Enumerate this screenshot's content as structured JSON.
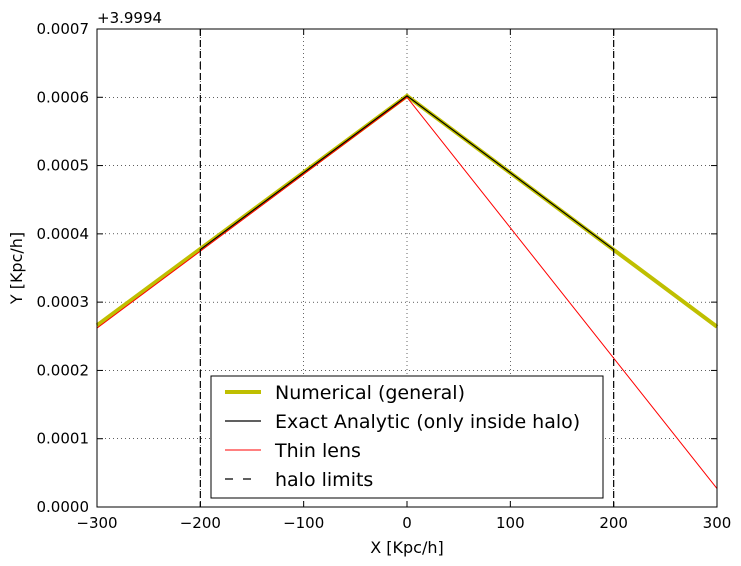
{
  "chart_data": {
    "type": "line",
    "xlabel": "X [Kpc/h]",
    "ylabel": "Y [Kpc/h]",
    "offset_label": "+3.9994",
    "xlim": [
      -300,
      300
    ],
    "ylim": [
      0.0,
      0.0007
    ],
    "x_ticks": [
      -300,
      -200,
      -100,
      0,
      100,
      200,
      300
    ],
    "x_tick_labels": [
      "−300",
      "−200",
      "−100",
      "0",
      "100",
      "200",
      "300"
    ],
    "y_ticks": [
      0.0,
      0.0001,
      0.0002,
      0.0003,
      0.0004,
      0.0005,
      0.0006,
      0.0007
    ],
    "y_tick_labels": [
      "0.0000",
      "0.0001",
      "0.0002",
      "0.0003",
      "0.0004",
      "0.0005",
      "0.0006",
      "0.0007"
    ],
    "grid": true,
    "legend_position": "lower-center",
    "series": [
      {
        "name": "Numerical (general)",
        "color": "#bfbf00",
        "style": "solid",
        "x": [
          -300,
          0,
          300
        ],
        "y": [
          0.000266,
          0.000602,
          0.000264
        ]
      },
      {
        "name": "Exact Analytic (only inside halo)",
        "color": "#000000",
        "style": "solid",
        "x": [
          -200,
          0,
          200
        ],
        "y": [
          0.000377,
          0.000602,
          0.000377
        ]
      },
      {
        "name": "Thin lens",
        "color": "#ff0000",
        "style": "solid",
        "x": [
          -300,
          0,
          300
        ],
        "y": [
          0.000262,
          0.0006,
          2.7e-05
        ]
      },
      {
        "name": "halo limits",
        "color": "#000000",
        "style": "dashed",
        "vlines": [
          -200,
          200
        ]
      }
    ]
  }
}
